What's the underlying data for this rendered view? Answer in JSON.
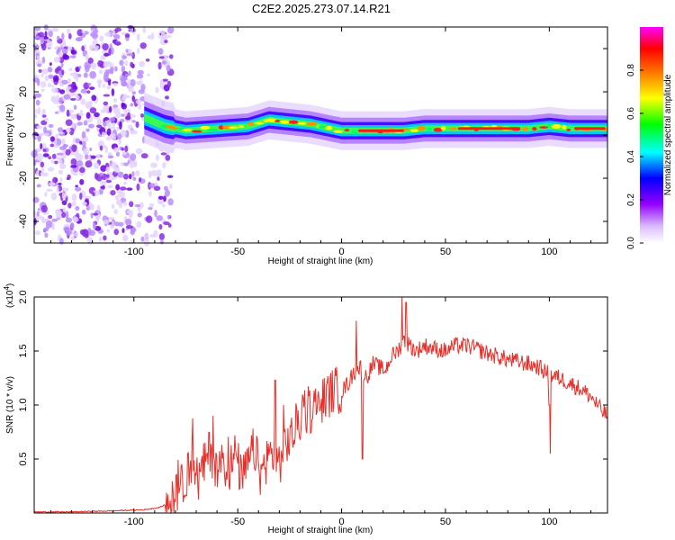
{
  "title": "C2E2.2025.273.07.14.R21",
  "chart_data": [
    {
      "type": "heatmap",
      "xlabel": "Height of straight line (km)",
      "ylabel": "Frequency (Hz)",
      "xlim": [
        -148,
        128
      ],
      "ylim": [
        -50,
        50
      ],
      "xticks": [
        -100,
        -50,
        0,
        50,
        100
      ],
      "yticks": [
        -40,
        -20,
        0,
        20,
        40
      ],
      "colorbar": {
        "label": "Normalized spectral amplitude",
        "range": [
          0,
          1
        ],
        "ticks": [
          "0.0",
          "0.2",
          "0.4",
          "0.6",
          "0.8"
        ],
        "tick_values": [
          0,
          0.2,
          0.4,
          0.6,
          0.8
        ],
        "colors": [
          "#ffffff",
          "#9400ff",
          "#0000ff",
          "#00ffff",
          "#00ff00",
          "#ffff00",
          "#ff8000",
          "#ff0000",
          "#ff00ff"
        ]
      },
      "noise_region_km": [
        -148,
        -88
      ],
      "ridge": {
        "x": [
          -95,
          -85,
          -75,
          -60,
          -45,
          -35,
          -25,
          -15,
          -5,
          0,
          10,
          20,
          30,
          40,
          50,
          60,
          70,
          80,
          90,
          100,
          110,
          120,
          128
        ],
        "freq_hz": [
          8,
          4,
          2,
          3,
          4,
          7,
          6,
          5,
          3,
          2,
          2,
          2,
          2,
          3,
          3,
          3,
          3,
          3,
          3,
          4,
          3,
          3,
          3
        ]
      }
    },
    {
      "type": "line",
      "xlabel": "Height of straight line (km)",
      "ylabel": "SNR (10 * v/v)",
      "multiplier_label": "(x10",
      "multiplier_exp": "4",
      "xlim": [
        -148,
        128
      ],
      "ylim": [
        0,
        2.0
      ],
      "xticks": [
        -100,
        -50,
        0,
        50,
        100
      ],
      "yticks": [
        "0.5",
        "1.0",
        "1.5",
        "2.0"
      ],
      "ytick_values": [
        0.5,
        1.0,
        1.5,
        2.0
      ],
      "color": "#e8302a",
      "x": [
        -148,
        -130,
        -110,
        -95,
        -88,
        -82,
        -78,
        -75,
        -72,
        -69,
        -66,
        -63,
        -60,
        -57,
        -54,
        -51,
        -48,
        -45,
        -42,
        -39,
        -36,
        -33,
        -30,
        -27,
        -24,
        -21,
        -18,
        -15,
        -12,
        -9,
        -6,
        -3,
        0,
        3,
        6,
        9,
        12,
        15,
        18,
        21,
        24,
        27,
        30,
        33,
        36,
        40,
        45,
        50,
        55,
        60,
        65,
        70,
        75,
        80,
        85,
        90,
        95,
        100,
        105,
        110,
        115,
        120,
        125,
        128
      ],
      "y": [
        0.01,
        0.01,
        0.02,
        0.03,
        0.05,
        0.1,
        0.18,
        0.35,
        0.5,
        0.3,
        0.45,
        0.6,
        0.35,
        0.5,
        0.4,
        0.55,
        0.3,
        0.45,
        0.6,
        0.35,
        0.5,
        0.55,
        0.45,
        0.65,
        0.7,
        0.85,
        0.9,
        0.95,
        1.0,
        1.05,
        1.1,
        1.15,
        1.12,
        1.2,
        1.3,
        1.35,
        1.25,
        1.38,
        1.35,
        1.32,
        1.45,
        1.5,
        1.6,
        1.55,
        1.5,
        1.55,
        1.52,
        1.5,
        1.55,
        1.55,
        1.52,
        1.48,
        1.45,
        1.42,
        1.4,
        1.38,
        1.35,
        1.28,
        1.25,
        1.2,
        1.15,
        1.08,
        0.95,
        0.9
      ],
      "spikes": [
        {
          "x": -62,
          "y": 0.9
        },
        {
          "x": -32,
          "y": 1.23
        },
        {
          "x": -28,
          "y": 1.0
        },
        {
          "x": 7,
          "y": 1.78
        },
        {
          "x": 10,
          "y": 0.5
        },
        {
          "x": 29,
          "y": 2.0
        },
        {
          "x": 31,
          "y": 1.95
        },
        {
          "x": 100,
          "y": 1.0
        },
        {
          "x": 100.5,
          "y": 0.55
        }
      ]
    }
  ]
}
